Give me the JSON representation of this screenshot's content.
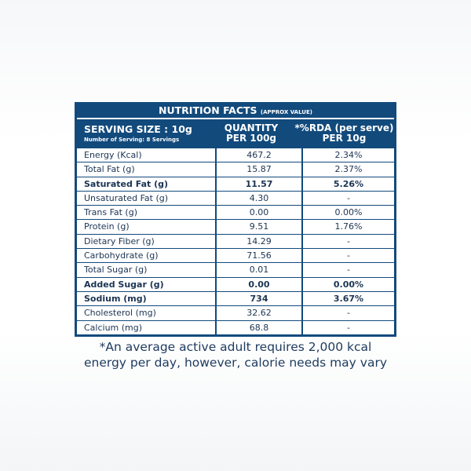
{
  "title": "NUTRITION FACTS",
  "title_note": "(APPROX VALUE)",
  "header": {
    "serving": "SERVING SIZE : 10g",
    "servings": "Number of Serving: 8 Servings",
    "qty1": "QUANTITY",
    "qty2": "PER 100g",
    "rda1": "*%RDA (per serve)",
    "rda2": "PER 10g"
  },
  "rows": [
    {
      "name": "Energy (Kcal)",
      "qty": "467.2",
      "rda": "2.34%"
    },
    {
      "name": "Total Fat (g)",
      "qty": "15.87",
      "rda": "2.37%"
    },
    {
      "name": "Saturated Fat (g)",
      "qty": "11.57",
      "rda": "5.26%",
      "bold": true
    },
    {
      "name": "Unsaturated Fat (g)",
      "qty": "4.30",
      "rda": "-"
    },
    {
      "name": "Trans Fat (g)",
      "qty": "0.00",
      "rda": "0.00%"
    },
    {
      "name": "Protein (g)",
      "qty": "9.51",
      "rda": "1.76%"
    },
    {
      "name": "Dietary Fiber (g)",
      "qty": "14.29",
      "rda": "-"
    },
    {
      "name": "Carbohydrate  (g)",
      "qty": "71.56",
      "rda": "-"
    },
    {
      "name": "Total Sugar (g)",
      "qty": "0.01",
      "rda": "-"
    },
    {
      "name": "Added Sugar (g)",
      "qty": "0.00",
      "rda": "0.00%",
      "bold": true
    },
    {
      "name": "Sodium (mg)",
      "qty": "734",
      "rda": "3.67%",
      "bold": true
    },
    {
      "name": "Cholesterol (mg)",
      "qty": "32.62",
      "rda": "-"
    },
    {
      "name": "Calcium (mg)",
      "qty": "68.8",
      "rda": "-"
    }
  ],
  "footnote1": "*An average active adult requires 2,000 kcal",
  "footnote2": "energy per day, however, calorie needs may vary"
}
